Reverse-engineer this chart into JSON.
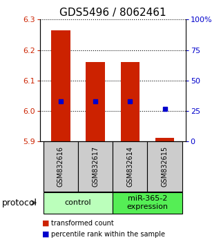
{
  "title": "GDS5496 / 8062461",
  "samples": [
    "GSM832616",
    "GSM832617",
    "GSM832614",
    "GSM832615"
  ],
  "bar_bottoms": [
    5.9,
    5.9,
    5.9,
    5.9
  ],
  "bar_tops": [
    6.265,
    6.16,
    6.16,
    5.912
  ],
  "blue_values": [
    6.032,
    6.032,
    6.032,
    6.008
  ],
  "ylim": [
    5.9,
    6.3
  ],
  "yticks_left": [
    5.9,
    6.0,
    6.1,
    6.2,
    6.3
  ],
  "yticks_right": [
    0,
    25,
    50,
    75,
    100
  ],
  "ytick_right_labels": [
    "0",
    "25",
    "50",
    "75",
    "100%"
  ],
  "bar_color": "#cc2200",
  "blue_color": "#0000cc",
  "groups": [
    {
      "label": "control",
      "samples": [
        0,
        1
      ],
      "color": "#bbffbb"
    },
    {
      "label": "miR-365-2\nexpression",
      "samples": [
        2,
        3
      ],
      "color": "#55ee55"
    }
  ],
  "group_label": "protocol",
  "legend_red": "transformed count",
  "legend_blue": "percentile rank within the sample",
  "sample_box_color": "#cccccc",
  "title_fontsize": 11,
  "tick_fontsize": 8,
  "bar_width": 0.55
}
